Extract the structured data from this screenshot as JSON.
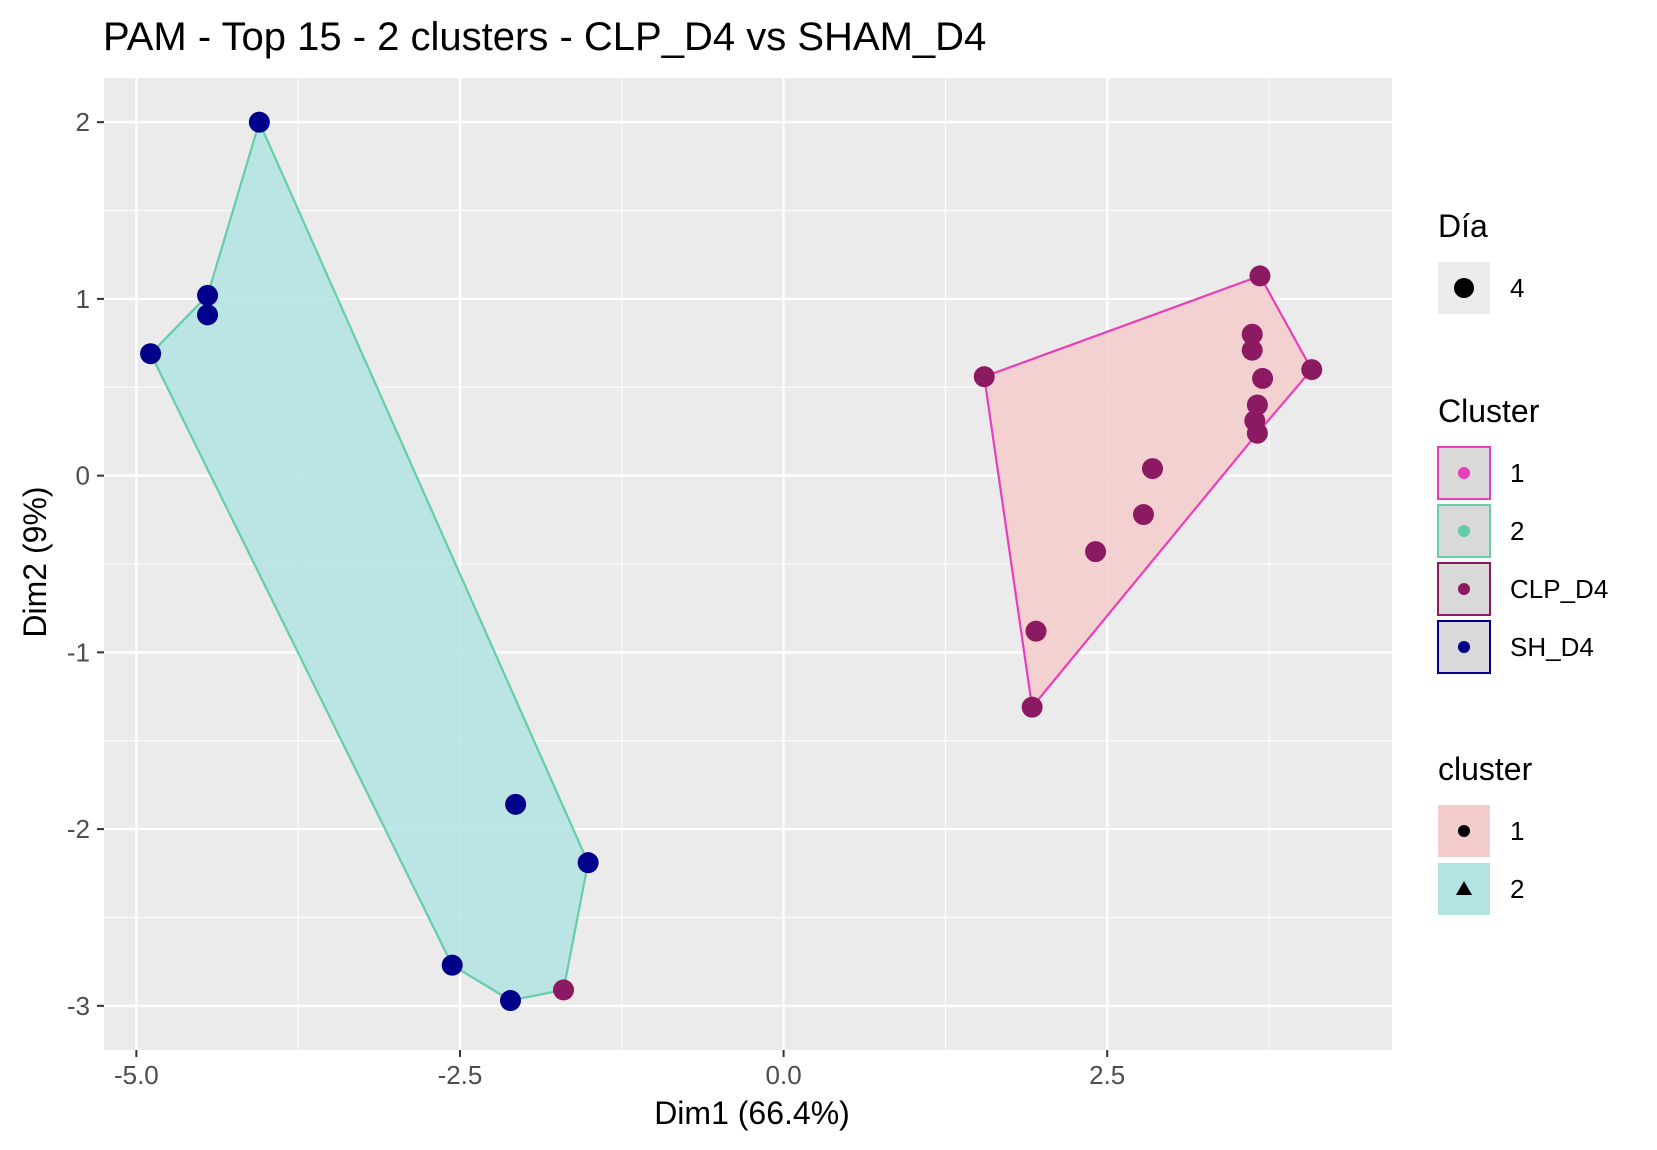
{
  "chart_data": {
    "type": "scatter",
    "title": "PAM - Top 15 - 2 clusters - CLP_D4 vs SHAM_D4",
    "xlabel": "Dim1 (66.4%)",
    "ylabel": "Dim2 (9%)",
    "xlim": [
      -5.25,
      4.7
    ],
    "ylim": [
      -3.25,
      2.25
    ],
    "xticks": [
      -5.0,
      -2.5,
      0.0,
      2.5
    ],
    "xtick_labels": [
      "-5.0",
      "-2.5",
      "0.0",
      "2.5"
    ],
    "yticks": [
      -3,
      -2,
      -1,
      0,
      1,
      2
    ],
    "ytick_labels": [
      "-3",
      "-2",
      "-1",
      "0",
      "1",
      "2"
    ],
    "grid": true,
    "legend_position": "right",
    "colors": {
      "panel_bg": "#ebebeb",
      "grid": "#ffffff",
      "hull_cluster_1_fill": "#f4cccc",
      "hull_cluster_1_line": "#e83fb8",
      "hull_cluster_2_fill": "#b3e3e3",
      "hull_cluster_2_line": "#66cdaa",
      "CLP_D4": "#8b1a62",
      "SH_D4": "#00008b"
    },
    "series": [
      {
        "name": "CLP_D4",
        "color": "#8b1a62",
        "points": [
          {
            "x": 1.55,
            "y": 0.56
          },
          {
            "x": 3.68,
            "y": 1.13
          },
          {
            "x": 3.62,
            "y": 0.8
          },
          {
            "x": 3.62,
            "y": 0.71
          },
          {
            "x": 4.08,
            "y": 0.6
          },
          {
            "x": 3.7,
            "y": 0.55
          },
          {
            "x": 3.66,
            "y": 0.4
          },
          {
            "x": 3.64,
            "y": 0.31
          },
          {
            "x": 3.66,
            "y": 0.24
          },
          {
            "x": 2.85,
            "y": 0.04
          },
          {
            "x": 2.78,
            "y": -0.22
          },
          {
            "x": 2.41,
            "y": -0.43
          },
          {
            "x": 1.95,
            "y": -0.88
          },
          {
            "x": 1.92,
            "y": -1.31
          },
          {
            "x": -1.7,
            "y": -2.91
          }
        ]
      },
      {
        "name": "SH_D4",
        "color": "#00008b",
        "points": [
          {
            "x": -4.05,
            "y": 2.0
          },
          {
            "x": -4.45,
            "y": 1.02
          },
          {
            "x": -4.45,
            "y": 0.91
          },
          {
            "x": -4.89,
            "y": 0.69
          },
          {
            "x": -2.07,
            "y": -1.86
          },
          {
            "x": -1.51,
            "y": -2.19
          },
          {
            "x": -2.56,
            "y": -2.77
          },
          {
            "x": -2.11,
            "y": -2.97
          }
        ]
      }
    ],
    "hulls": [
      {
        "cluster": "1",
        "vertices": [
          {
            "x": 1.55,
            "y": 0.56
          },
          {
            "x": 3.68,
            "y": 1.13
          },
          {
            "x": 4.08,
            "y": 0.6
          },
          {
            "x": 3.66,
            "y": 0.24
          },
          {
            "x": 1.92,
            "y": -1.31
          }
        ]
      },
      {
        "cluster": "2",
        "vertices": [
          {
            "x": -4.05,
            "y": 2.0
          },
          {
            "x": -1.51,
            "y": -2.19
          },
          {
            "x": -1.7,
            "y": -2.91
          },
          {
            "x": -2.11,
            "y": -2.97
          },
          {
            "x": -2.56,
            "y": -2.77
          },
          {
            "x": -4.89,
            "y": 0.69
          },
          {
            "x": -4.45,
            "y": 1.02
          }
        ]
      }
    ],
    "legends": [
      {
        "title": "Día",
        "items": [
          {
            "label": "4",
            "symbol": "circle",
            "color": "#000000",
            "key_fill": "#ebebeb",
            "key_border": "none"
          }
        ]
      },
      {
        "title": "Cluster",
        "items": [
          {
            "label": "1",
            "symbol": "circle-small",
            "color": "#e83fb8",
            "key_fill": "#d9d9d9",
            "key_border": "#e83fb8"
          },
          {
            "label": "2",
            "symbol": "circle-small",
            "color": "#66cdaa",
            "key_fill": "#d9d9d9",
            "key_border": "#66cdaa"
          },
          {
            "label": "CLP_D4",
            "symbol": "circle-small",
            "color": "#8b1a62",
            "key_fill": "#d9d9d9",
            "key_border": "#8b1a62"
          },
          {
            "label": "SH_D4",
            "symbol": "circle-small",
            "color": "#00008b",
            "key_fill": "#d9d9d9",
            "key_border": "#00008b"
          }
        ]
      },
      {
        "title": "cluster",
        "items": [
          {
            "label": "1",
            "symbol": "circle-small",
            "color": "#000000",
            "key_fill": "#f4cccc",
            "key_border": "none"
          },
          {
            "label": "2",
            "symbol": "triangle",
            "color": "#000000",
            "key_fill": "#b3e3e3",
            "key_border": "none"
          }
        ]
      }
    ]
  }
}
